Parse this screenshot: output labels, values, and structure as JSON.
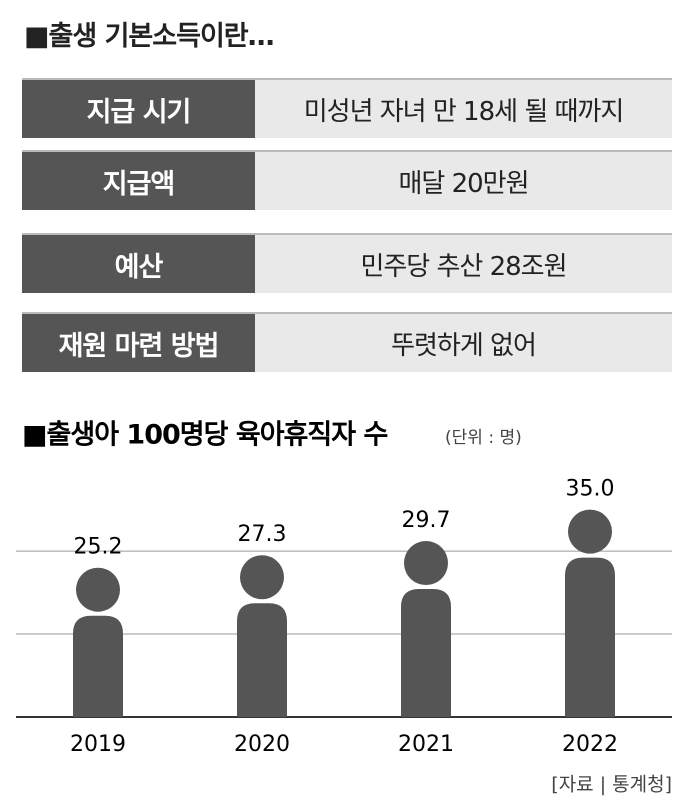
{
  "info": {
    "title": "■출생 기본소득이란…",
    "rows": [
      [
        "지급 시기",
        "미성년 자녀 만 18세 될 때까지"
      ],
      [
        "지급액",
        "매달 20만원"
      ],
      [
        "예산",
        "민주당 추산 28조원"
      ],
      [
        "재원 마련 방법",
        "뚜렷하게 없어"
      ]
    ]
  },
  "chart_data": {
    "type": "pictogram-bar",
    "title": "■출생아 100명당 육아휴직자 수",
    "subtitle": "(단위 : 명)",
    "categories": [
      "2019",
      "2020",
      "2021",
      "2022"
    ],
    "values": [
      25.2,
      27.3,
      29.7,
      35.0
    ],
    "value_labels": [
      "25.2",
      "27.3",
      "29.7",
      "35.0"
    ],
    "color": "#555555",
    "ylim": [
      0,
      40
    ],
    "yticks": [
      0,
      14,
      28
    ],
    "grid": true,
    "source": "[자료 | 통계청]"
  }
}
